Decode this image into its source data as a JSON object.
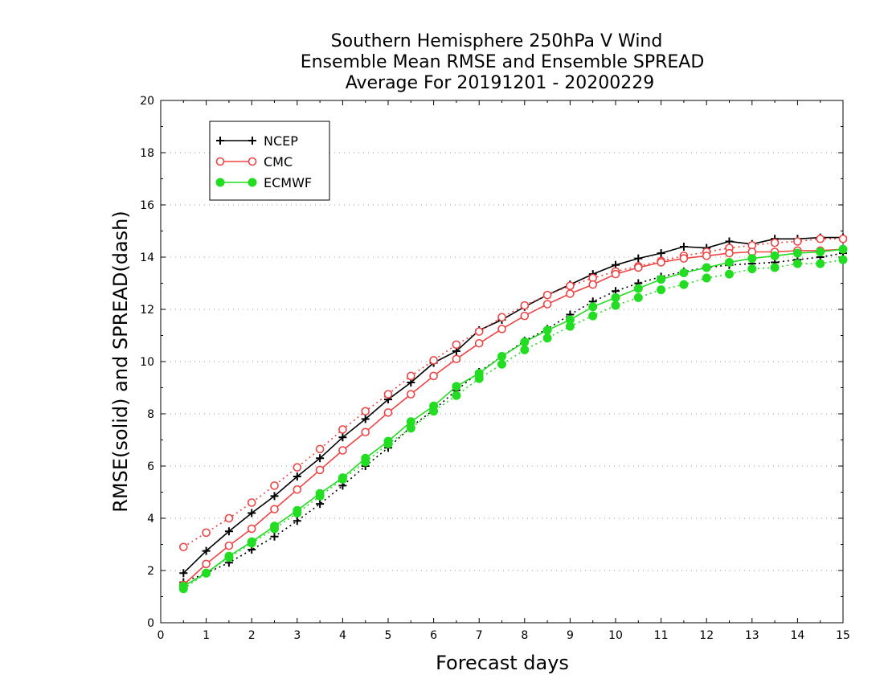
{
  "chart_data": {
    "type": "line",
    "title": [
      "Southern Hemisphere 250hPa V Wind",
      "Ensemble Mean RMSE and Ensemble SPREAD",
      "Average For 20191201 - 20200229"
    ],
    "xlabel": "Forecast days",
    "ylabel": "RMSE(solid) and SPREAD(dash)",
    "xlim": [
      0,
      15
    ],
    "ylim": [
      0,
      20
    ],
    "xticks": [
      0,
      1,
      2,
      3,
      4,
      5,
      6,
      7,
      8,
      9,
      10,
      11,
      12,
      13,
      14,
      15
    ],
    "xtick_labels": [
      "0",
      "1",
      "2",
      "3",
      "4",
      "5",
      "6",
      "7",
      "8",
      "9",
      "10",
      "11",
      "12",
      "13",
      "14",
      "15"
    ],
    "yticks": [
      0,
      2,
      4,
      6,
      8,
      10,
      12,
      14,
      16,
      18,
      20
    ],
    "ytick_labels": [
      "0",
      "2",
      "4",
      "6",
      "8",
      "10",
      "12",
      "14",
      "16",
      "18",
      "20"
    ],
    "grid": "horizontal dotted",
    "legend_position": "top-left",
    "x": [
      0.5,
      1,
      1.5,
      2,
      2.5,
      3,
      3.5,
      4,
      4.5,
      5,
      5.5,
      6,
      6.5,
      7,
      7.5,
      8,
      8.5,
      9,
      9.5,
      10,
      10.5,
      11,
      11.5,
      12,
      12.5,
      13,
      13.5,
      14,
      14.5,
      15
    ],
    "series": [
      {
        "name": "NCEP",
        "color": "#000000",
        "marker": "plus",
        "rmse": [
          1.9,
          2.75,
          3.5,
          4.2,
          4.85,
          5.6,
          6.3,
          7.1,
          7.8,
          8.55,
          9.2,
          9.95,
          10.4,
          11.2,
          11.6,
          12.1,
          12.55,
          12.95,
          13.35,
          13.7,
          13.95,
          14.15,
          14.4,
          14.35,
          14.6,
          14.5,
          14.7,
          14.7,
          14.75,
          14.75
        ],
        "spread": [
          1.55,
          1.9,
          2.3,
          2.8,
          3.3,
          3.9,
          4.55,
          5.25,
          6.0,
          6.7,
          7.5,
          8.15,
          8.9,
          9.6,
          10.2,
          10.8,
          11.25,
          11.8,
          12.3,
          12.7,
          13.0,
          13.25,
          13.45,
          13.6,
          13.7,
          13.75,
          13.8,
          13.9,
          14.0,
          14.15
        ]
      },
      {
        "name": "CMC",
        "color": "#ee4444",
        "marker": "open-circle",
        "rmse": [
          1.45,
          2.25,
          2.95,
          3.6,
          4.35,
          5.1,
          5.85,
          6.6,
          7.3,
          8.05,
          8.75,
          9.45,
          10.1,
          10.7,
          11.25,
          11.75,
          12.2,
          12.6,
          12.95,
          13.35,
          13.6,
          13.8,
          13.95,
          14.05,
          14.15,
          14.2,
          14.2,
          14.25,
          14.25,
          14.3
        ],
        "spread": [
          2.9,
          3.45,
          4.0,
          4.6,
          5.25,
          5.95,
          6.65,
          7.4,
          8.1,
          8.75,
          9.45,
          10.05,
          10.65,
          11.15,
          11.7,
          12.15,
          12.55,
          12.9,
          13.2,
          13.45,
          13.65,
          13.85,
          14.05,
          14.2,
          14.35,
          14.45,
          14.55,
          14.6,
          14.7,
          14.7
        ]
      },
      {
        "name": "ECMWF",
        "color": "#22dd22",
        "marker": "filled-circle",
        "rmse": [
          1.4,
          1.9,
          2.55,
          3.1,
          3.7,
          4.3,
          4.95,
          5.55,
          6.3,
          6.95,
          7.7,
          8.3,
          9.05,
          9.55,
          10.2,
          10.75,
          11.2,
          11.6,
          12.1,
          12.45,
          12.8,
          13.15,
          13.4,
          13.6,
          13.8,
          13.95,
          14.05,
          14.15,
          14.2,
          14.3
        ],
        "spread": [
          1.3,
          1.9,
          2.5,
          3.05,
          3.6,
          4.2,
          4.85,
          5.5,
          6.15,
          6.85,
          7.45,
          8.1,
          8.7,
          9.35,
          9.9,
          10.45,
          10.9,
          11.35,
          11.75,
          12.15,
          12.45,
          12.75,
          12.95,
          13.2,
          13.35,
          13.55,
          13.6,
          13.75,
          13.75,
          13.9
        ]
      }
    ]
  }
}
